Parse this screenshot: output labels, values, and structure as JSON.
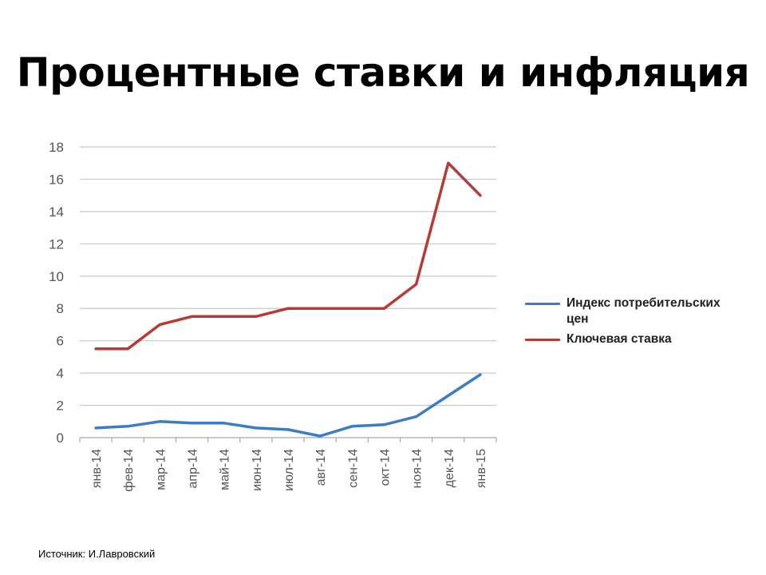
{
  "slide": {
    "title": "Процентные ставки и инфляция",
    "source": "Источник: И.Лавровский"
  },
  "chart_data": {
    "type": "line",
    "categories": [
      "янв-14",
      "фев-14",
      "мар-14",
      "апр-14",
      "май-14",
      "июн-14",
      "июл-14",
      "авг-14",
      "сен-14",
      "окт-14",
      "ноя-14",
      "дек-14",
      "янв-15"
    ],
    "series": [
      {
        "name": "Индекс потребительских цен",
        "color": "#3d7cc4",
        "values": [
          0.6,
          0.7,
          1.0,
          0.9,
          0.9,
          0.6,
          0.5,
          0.1,
          0.7,
          0.8,
          1.3,
          2.6,
          3.9
        ]
      },
      {
        "name": "Ключевая ставка",
        "color": "#b63a36",
        "values": [
          5.5,
          5.5,
          7.0,
          7.5,
          7.5,
          7.5,
          8.0,
          8.0,
          8.0,
          8.0,
          9.5,
          17.0,
          15.0
        ]
      }
    ],
    "ylim": [
      0,
      18
    ],
    "yticks": [
      0,
      2,
      4,
      6,
      8,
      10,
      12,
      14,
      16,
      18
    ],
    "grid": true,
    "legend": "right"
  }
}
